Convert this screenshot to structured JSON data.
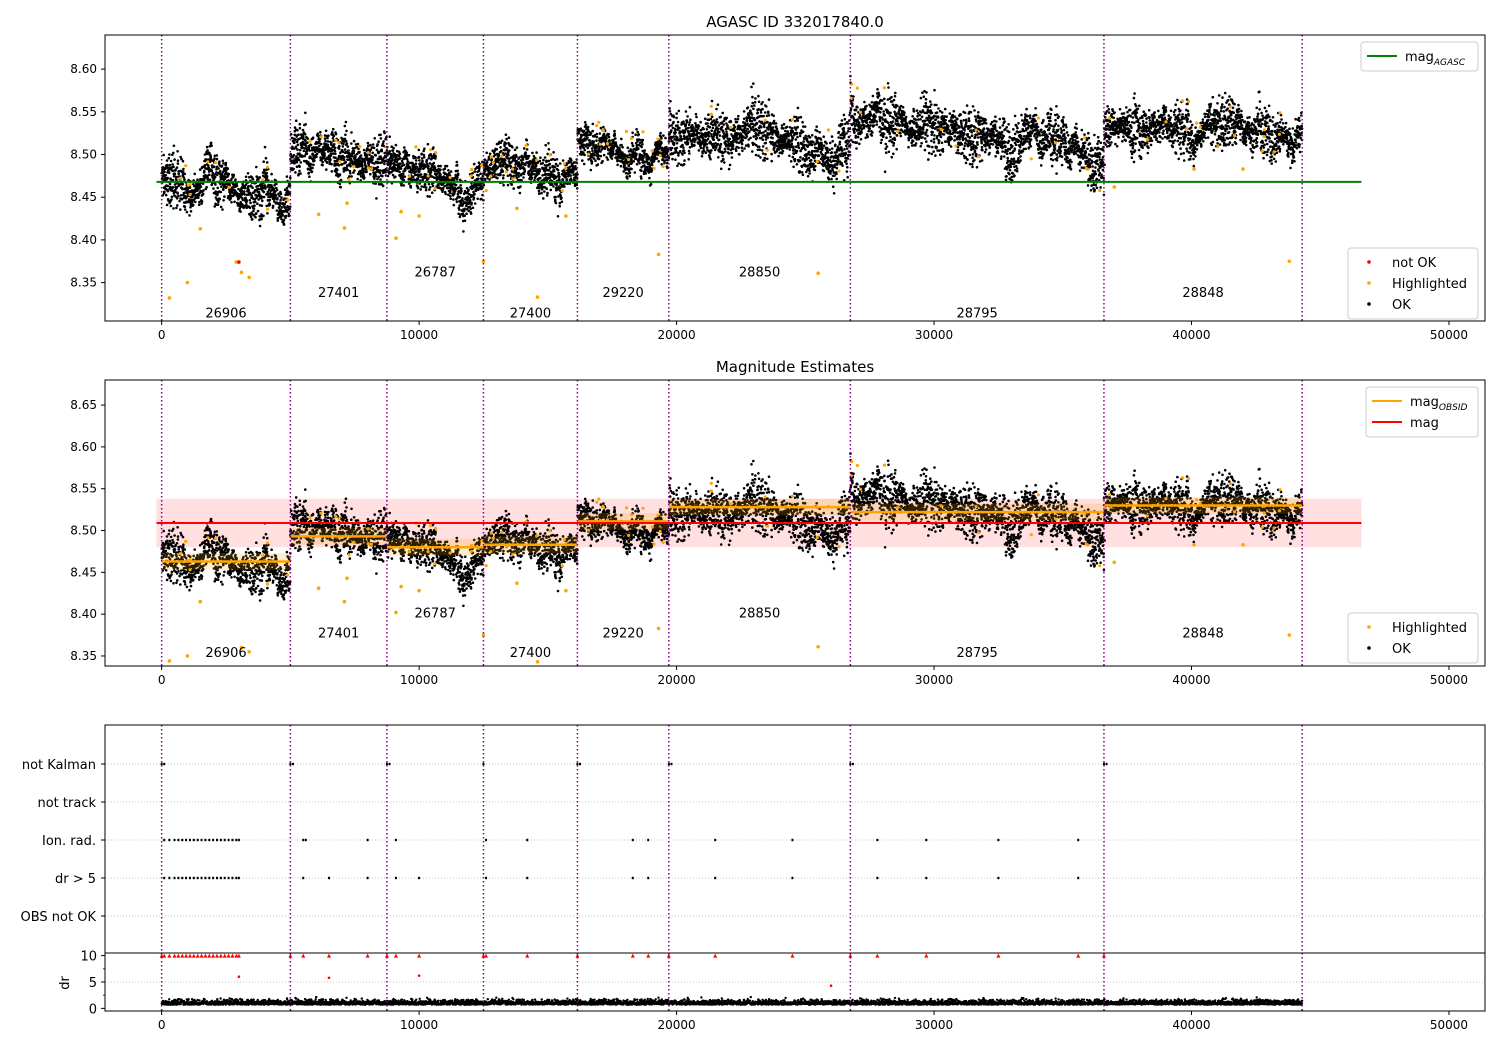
{
  "colors": {
    "ok": "#000000",
    "highlighted": "#ffa500",
    "not_ok": "#ff0000",
    "mag_agasc": "#008000",
    "mag_obsid": "#ffa500",
    "mag": "#ff0000",
    "obs_boundary": "#800080",
    "band": "#ffc0c0"
  },
  "chart_data": [
    {
      "type": "scatter",
      "title": "AGASC ID 332017840.0",
      "xlabel": "",
      "ylabel": "",
      "xlim": [
        -2200,
        51400
      ],
      "ylim": [
        8.305,
        8.64
      ],
      "xticks": [
        0,
        10000,
        20000,
        30000,
        40000,
        50000
      ],
      "xtick_labels": [
        "0",
        "10000",
        "20000",
        "30000",
        "40000",
        "50000"
      ],
      "yticks": [
        8.35,
        8.4,
        8.45,
        8.5,
        8.55,
        8.6
      ],
      "ytick_labels": [
        "8.35",
        "8.40",
        "8.45",
        "8.50",
        "8.55",
        "8.60"
      ],
      "legends": [
        {
          "placement": "top-right",
          "entries": [
            {
              "label": "mag",
              "sub": "AGASC",
              "kind": "line",
              "color": "#008000"
            }
          ]
        },
        {
          "placement": "bottom-right",
          "entries": [
            {
              "label": "not OK",
              "kind": "dot",
              "color": "#ff0000"
            },
            {
              "label": "Highlighted",
              "kind": "dot",
              "color": "#ffa500"
            },
            {
              "label": "OK",
              "kind": "dot",
              "color": "#000000"
            }
          ]
        }
      ],
      "mag_agasc": {
        "value": 8.468,
        "x": [
          -200,
          46600
        ]
      },
      "observations": [
        {
          "obsid": "26906",
          "start": 0,
          "end": 5000,
          "label_y": 8.315,
          "trend": [
            [
              0,
              8.468
            ],
            [
              1500,
              8.468
            ],
            [
              3000,
              8.465
            ],
            [
              4500,
              8.458
            ],
            [
              5000,
              8.462
            ]
          ],
          "spread": 0.012,
          "noisy": 0.35
        },
        {
          "obsid": "27401",
          "start": 5000,
          "end": 8750,
          "label_y": 8.339,
          "trend": [
            [
              5000,
              8.49
            ],
            [
              6000,
              8.5
            ],
            [
              7000,
              8.5
            ],
            [
              8000,
              8.49
            ],
            [
              8750,
              8.485
            ]
          ],
          "spread": 0.012,
          "noisy": 0.3
        },
        {
          "obsid": "26787",
          "start": 8750,
          "end": 12500,
          "label_y": 8.363,
          "trend": [
            [
              8750,
              8.485
            ],
            [
              10000,
              8.485
            ],
            [
              11000,
              8.478
            ],
            [
              12000,
              8.465
            ],
            [
              12500,
              8.468
            ]
          ],
          "spread": 0.011,
          "noisy": 0.3
        },
        {
          "obsid": "27400",
          "start": 12500,
          "end": 16150,
          "label_y": 8.315,
          "trend": [
            [
              12500,
              8.48
            ],
            [
              13500,
              8.49
            ],
            [
              14500,
              8.485
            ],
            [
              15500,
              8.475
            ],
            [
              16150,
              8.47
            ]
          ],
          "spread": 0.011,
          "noisy": 0.3
        },
        {
          "obsid": "29220",
          "start": 16150,
          "end": 19700,
          "label_y": 8.339,
          "trend": [
            [
              16150,
              8.52
            ],
            [
              17000,
              8.52
            ],
            [
              18000,
              8.512
            ],
            [
              19000,
              8.505
            ],
            [
              19700,
              8.5
            ]
          ],
          "spread": 0.009,
          "noisy": 0.3
        },
        {
          "obsid": "28850",
          "start": 19700,
          "end": 26750,
          "label_y": 8.363,
          "trend": [
            [
              19700,
              8.53
            ],
            [
              21000,
              8.53
            ],
            [
              23000,
              8.535
            ],
            [
              24500,
              8.525
            ],
            [
              25500,
              8.51
            ],
            [
              26750,
              8.5
            ]
          ],
          "spread": 0.013,
          "noisy": 0.35
        },
        {
          "obsid": "28795",
          "start": 26750,
          "end": 36600,
          "label_y": 8.315,
          "trend": [
            [
              26750,
              8.555
            ],
            [
              28500,
              8.548
            ],
            [
              30000,
              8.53
            ],
            [
              32000,
              8.525
            ],
            [
              34000,
              8.518
            ],
            [
              35500,
              8.51
            ],
            [
              36600,
              8.48
            ]
          ],
          "spread": 0.013,
          "noisy": 0.35
        },
        {
          "obsid": "28848",
          "start": 36600,
          "end": 44300,
          "label_y": 8.339,
          "trend": [
            [
              36600,
              8.52
            ],
            [
              38000,
              8.53
            ],
            [
              39500,
              8.54
            ],
            [
              41000,
              8.535
            ],
            [
              42500,
              8.528
            ],
            [
              44300,
              8.52
            ]
          ],
          "spread": 0.012,
          "noisy": 0.35
        }
      ],
      "highlighted_points": [
        [
          300,
          8.332
        ],
        [
          1000,
          8.35
        ],
        [
          1500,
          8.413
        ],
        [
          2900,
          8.374
        ],
        [
          3100,
          8.362
        ],
        [
          3400,
          8.356
        ],
        [
          6100,
          8.43
        ],
        [
          7100,
          8.414
        ],
        [
          7200,
          8.443
        ],
        [
          9100,
          8.402
        ],
        [
          9300,
          8.433
        ],
        [
          10000,
          8.428
        ],
        [
          12500,
          8.375
        ],
        [
          13800,
          8.437
        ],
        [
          14600,
          8.333
        ],
        [
          15700,
          8.428
        ],
        [
          19300,
          8.383
        ],
        [
          25500,
          8.361
        ],
        [
          40100,
          8.483
        ],
        [
          42000,
          8.483
        ],
        [
          43800,
          8.375
        ],
        [
          37000,
          8.462
        ]
      ],
      "not_ok_points": [
        [
          3000,
          8.374
        ]
      ]
    },
    {
      "type": "scatter",
      "title": "Magnitude Estimates",
      "xlabel": "",
      "ylabel": "",
      "xlim": [
        -2200,
        51400
      ],
      "ylim": [
        8.338,
        8.68
      ],
      "xticks": [
        0,
        10000,
        20000,
        30000,
        40000,
        50000
      ],
      "xtick_labels": [
        "0",
        "10000",
        "20000",
        "30000",
        "40000",
        "50000"
      ],
      "yticks": [
        8.35,
        8.4,
        8.45,
        8.5,
        8.55,
        8.6,
        8.65
      ],
      "ytick_labels": [
        "8.35",
        "8.40",
        "8.45",
        "8.50",
        "8.55",
        "8.60",
        "8.65"
      ],
      "legends": [
        {
          "placement": "top-right",
          "entries": [
            {
              "label": "mag",
              "sub": "OBSID",
              "kind": "line",
              "color": "#ffa500"
            },
            {
              "label": "mag",
              "kind": "line",
              "color": "#ff0000"
            }
          ]
        },
        {
          "placement": "bottom-right",
          "entries": [
            {
              "label": "Highlighted",
              "kind": "dot",
              "color": "#ffa500"
            },
            {
              "label": "OK",
              "kind": "dot",
              "color": "#000000"
            }
          ]
        }
      ],
      "mag": {
        "value": 8.509,
        "band": [
          8.48,
          8.538
        ],
        "x": [
          -200,
          46600
        ]
      },
      "mag_obsid": [
        8.463,
        8.493,
        8.48,
        8.483,
        8.511,
        8.528,
        8.522,
        8.53
      ],
      "obsid_label_y": [
        8.355,
        8.378,
        8.402,
        8.355,
        8.378,
        8.402,
        8.355,
        8.378
      ],
      "highlighted_points": [
        [
          300,
          8.344
        ],
        [
          1000,
          8.35
        ],
        [
          1500,
          8.415
        ],
        [
          3100,
          8.36
        ],
        [
          3400,
          8.355
        ],
        [
          6100,
          8.431
        ],
        [
          7100,
          8.415
        ],
        [
          7200,
          8.443
        ],
        [
          9100,
          8.402
        ],
        [
          9300,
          8.433
        ],
        [
          10000,
          8.428
        ],
        [
          12500,
          8.375
        ],
        [
          13800,
          8.437
        ],
        [
          14600,
          8.343
        ],
        [
          15700,
          8.428
        ],
        [
          19300,
          8.383
        ],
        [
          25500,
          8.361
        ],
        [
          40100,
          8.483
        ],
        [
          42000,
          8.483
        ],
        [
          43800,
          8.375
        ],
        [
          37000,
          8.462
        ]
      ]
    },
    {
      "type": "scatter",
      "title": "",
      "xlabel": "",
      "ylabel": "dr",
      "xlim": [
        -2200,
        51400
      ],
      "xticks": [
        0,
        10000,
        20000,
        30000,
        40000,
        50000
      ],
      "xtick_labels": [
        "0",
        "10000",
        "20000",
        "30000",
        "40000",
        "50000"
      ],
      "flag_rows": [
        "not Kalman",
        "not track",
        "Ion. rad.",
        "dr > 5",
        "OBS not OK"
      ],
      "flags": {
        "not Kalman": [
          0,
          100,
          5000,
          5100,
          8750,
          8850,
          12500,
          16150,
          16250,
          19700,
          19800,
          26750,
          26850,
          36600,
          36700
        ],
        "not track": [],
        "Ion. rad.": [
          100,
          300,
          500,
          650,
          800,
          950,
          1100,
          1250,
          1400,
          1550,
          1700,
          1850,
          2000,
          2150,
          2300,
          2450,
          2600,
          2750,
          2900,
          3000,
          5500,
          5600,
          8000,
          9100,
          12600,
          14200,
          18300,
          18900,
          21500,
          24500,
          27800,
          29700,
          32500,
          35600
        ],
        "dr > 5": [
          100,
          300,
          500,
          650,
          800,
          950,
          1100,
          1250,
          1400,
          1550,
          1700,
          1850,
          2000,
          2150,
          2300,
          2450,
          2600,
          2750,
          2900,
          3000,
          5500,
          6500,
          8000,
          9100,
          10000,
          12600,
          14200,
          18300,
          18900,
          21500,
          24500,
          27800,
          29700,
          32500,
          35600
        ],
        "OBS not OK": []
      },
      "dr": {
        "ylim": [
          -0.5,
          10.5
        ],
        "yticks": [
          0,
          5,
          10
        ],
        "ytick_labels": [
          "0",
          "5",
          "10"
        ],
        "clipped_at": 10,
        "outliers": [
          [
            3000,
            6
          ],
          [
            6500,
            5.8
          ],
          [
            10000,
            6.2
          ],
          [
            26000,
            4.3
          ]
        ],
        "typical_level": 0.9
      }
    }
  ]
}
